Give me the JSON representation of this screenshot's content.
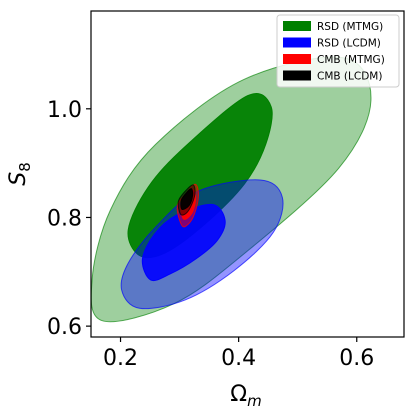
{
  "chart_data": {
    "type": "contour",
    "xlabel": {
      "main": "Ω",
      "sub": "m"
    },
    "ylabel": {
      "main": "S",
      "sub": "8"
    },
    "xlim": [
      0.15,
      0.68
    ],
    "ylim": [
      0.58,
      1.18
    ],
    "xticks": [
      {
        "value": 0.2,
        "label": "0.2"
      },
      {
        "value": 0.4,
        "label": "0.4"
      },
      {
        "value": 0.6,
        "label": "0.6"
      }
    ],
    "yticks": [
      {
        "value": 0.6,
        "label": "0.6"
      },
      {
        "value": 0.8,
        "label": "0.8"
      },
      {
        "value": 1.0,
        "label": "1.0"
      }
    ],
    "legend_position": "top-right",
    "series": [
      {
        "name": "RSD (MTMG)",
        "color": "#008000",
        "contours": [
          {
            "level": "outer",
            "opacity": 0.38,
            "points": [
              [
                0.169,
                0.61
              ],
              [
                0.152,
                0.687
              ],
              [
                0.183,
                0.814
              ],
              [
                0.259,
                0.934
              ],
              [
                0.409,
                1.054
              ],
              [
                0.577,
                1.094
              ],
              [
                0.624,
                1.015
              ],
              [
                0.569,
                0.89
              ],
              [
                0.409,
                0.733
              ],
              [
                0.29,
                0.641
              ]
            ]
          },
          {
            "level": "inner",
            "opacity": 0.95,
            "points": [
              [
                0.232,
                0.73
              ],
              [
                0.213,
                0.777
              ],
              [
                0.247,
                0.856
              ],
              [
                0.31,
                0.931
              ],
              [
                0.415,
                1.024
              ],
              [
                0.455,
                1.004
              ],
              [
                0.446,
                0.935
              ],
              [
                0.41,
                0.862
              ],
              [
                0.342,
                0.787
              ],
              [
                0.276,
                0.735
              ]
            ]
          }
        ]
      },
      {
        "name": "RSD (LCDM)",
        "color": "#0000ff",
        "contours": [
          {
            "level": "outer",
            "opacity": 0.42,
            "points": [
              [
                0.232,
                0.633
              ],
              [
                0.202,
                0.666
              ],
              [
                0.213,
                0.716
              ],
              [
                0.261,
                0.784
              ],
              [
                0.333,
                0.849
              ],
              [
                0.437,
                0.869
              ],
              [
                0.474,
                0.837
              ],
              [
                0.459,
                0.773
              ],
              [
                0.392,
                0.702
              ],
              [
                0.309,
                0.648
              ]
            ]
          },
          {
            "level": "inner",
            "opacity": 0.9,
            "points": [
              [
                0.251,
                0.685
              ],
              [
                0.237,
                0.723
              ],
              [
                0.258,
                0.77
              ],
              [
                0.296,
                0.805
              ],
              [
                0.355,
                0.824
              ],
              [
                0.377,
                0.795
              ],
              [
                0.364,
                0.758
              ],
              [
                0.328,
                0.724
              ],
              [
                0.284,
                0.696
              ]
            ]
          }
        ]
      },
      {
        "name": "CMB (MTMG)",
        "color": "#ff0000",
        "contours": [
          {
            "level": "outer",
            "opacity": 0.5,
            "points": [
              [
                0.304,
                0.785
              ],
              [
                0.296,
                0.82
              ],
              [
                0.311,
                0.845
              ],
              [
                0.327,
                0.861
              ],
              [
                0.332,
                0.839
              ],
              [
                0.325,
                0.806
              ],
              [
                0.315,
                0.788
              ]
            ]
          },
          {
            "level": "inner",
            "opacity": 0.95,
            "points": [
              [
                0.307,
                0.797
              ],
              [
                0.302,
                0.822
              ],
              [
                0.314,
                0.842
              ],
              [
                0.323,
                0.852
              ],
              [
                0.327,
                0.833
              ],
              [
                0.321,
                0.808
              ]
            ]
          }
        ]
      },
      {
        "name": "CMB (LCDM)",
        "color": "#000000",
        "contours": [
          {
            "level": "outer",
            "opacity": 0.45,
            "points": [
              [
                0.301,
                0.807
              ],
              [
                0.298,
                0.83
              ],
              [
                0.31,
                0.849
              ],
              [
                0.323,
                0.86
              ],
              [
                0.326,
                0.843
              ],
              [
                0.318,
                0.818
              ],
              [
                0.309,
                0.806
              ]
            ]
          },
          {
            "level": "inner",
            "opacity": 0.95,
            "points": [
              [
                0.304,
                0.815
              ],
              [
                0.303,
                0.832
              ],
              [
                0.312,
                0.846
              ],
              [
                0.32,
                0.853
              ],
              [
                0.322,
                0.84
              ],
              [
                0.316,
                0.822
              ]
            ]
          }
        ]
      }
    ]
  }
}
